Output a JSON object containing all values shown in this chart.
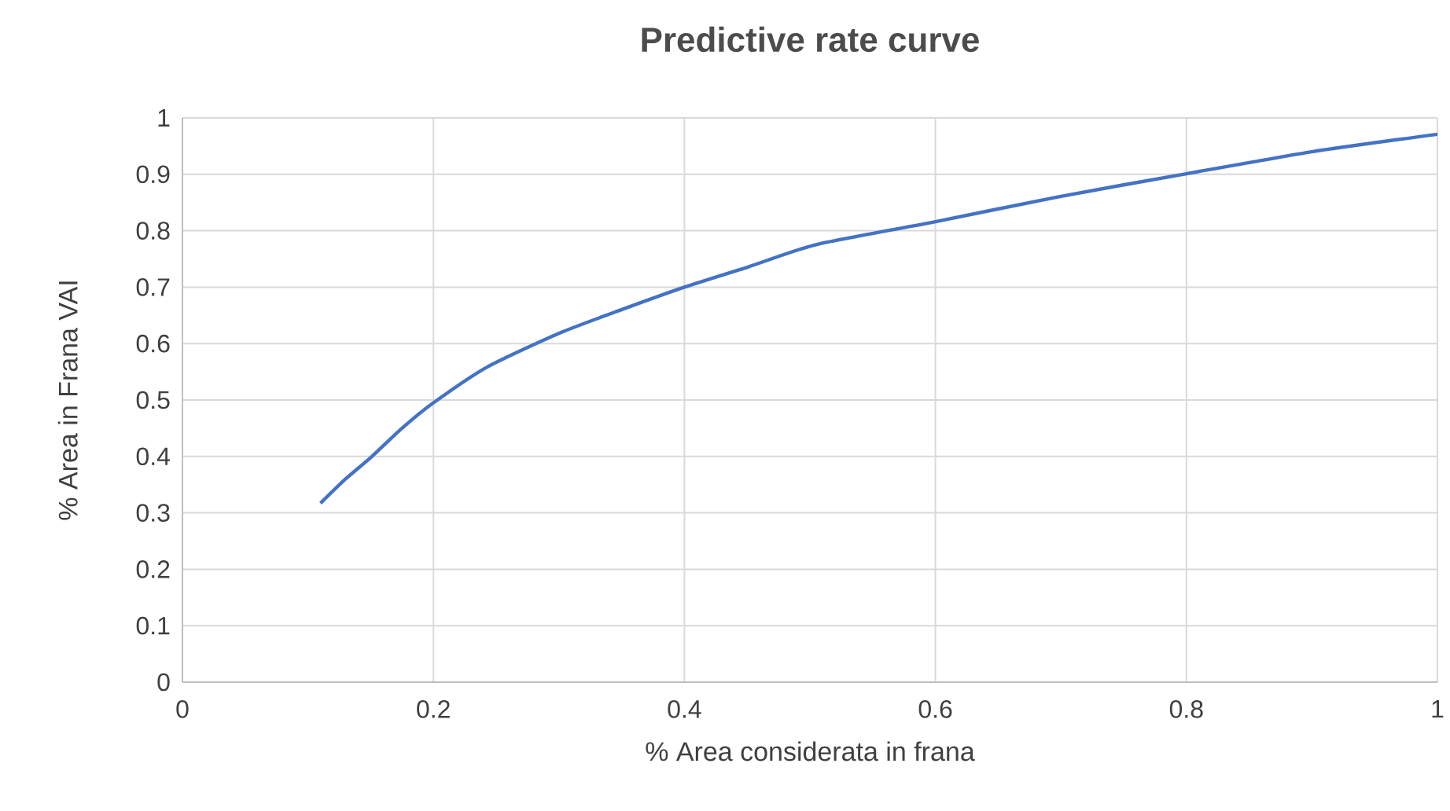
{
  "chart_data": {
    "type": "line",
    "title": "Predictive rate curve",
    "xlabel": "% Area considerata in frana",
    "ylabel": "% Area in Frana VAI",
    "x": [
      0.11,
      0.13,
      0.151,
      0.175,
      0.2,
      0.2425,
      0.301,
      0.351,
      0.4,
      0.451,
      0.506,
      0.6,
      0.7,
      0.8,
      0.9,
      1.0
    ],
    "series": [
      {
        "color": "#4472c4",
        "values": [
          0.317,
          0.36,
          0.4,
          0.45,
          0.495,
          0.558,
          0.619,
          0.661,
          0.7,
          0.736,
          0.776,
          0.816,
          0.861,
          0.901,
          0.94,
          0.971
        ]
      }
    ],
    "xlim": [
      0,
      1
    ],
    "ylim": [
      0,
      1
    ],
    "xticks": [
      0,
      0.2,
      0.4,
      0.6,
      0.8,
      1
    ],
    "yticks": [
      0,
      0.1,
      0.2,
      0.3,
      0.4,
      0.5,
      0.6,
      0.7,
      0.8,
      0.9,
      1
    ],
    "grid": true,
    "marker": "none",
    "line_style": "solid"
  }
}
